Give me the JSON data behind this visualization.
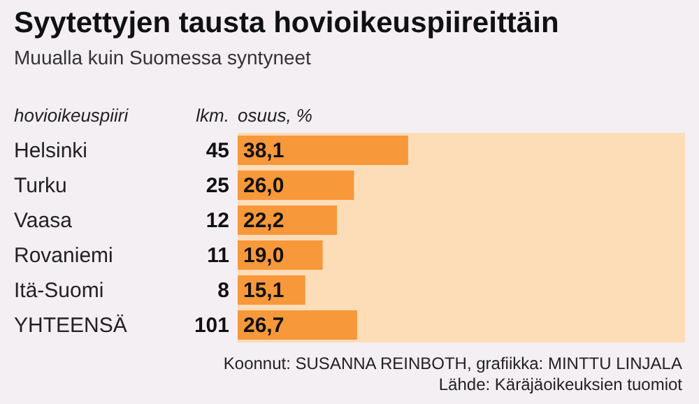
{
  "chart_data": {
    "type": "bar",
    "orientation": "horizontal",
    "title": "Syytettyjen tausta hovioikeuspiireittäin",
    "subtitle": "Muualla kuin Suomessa syntyneet",
    "xlabel": "osuus, %",
    "categories": [
      "Helsinki",
      "Turku",
      "Vaasa",
      "Rovaniemi",
      "Itä-Suomi",
      "YHTEENSÄ"
    ],
    "values": [
      38.1,
      26.0,
      22.2,
      19.0,
      15.1,
      26.7
    ],
    "value_labels": [
      "38,1",
      "26,0",
      "22,2",
      "19,0",
      "15,1",
      "26,7"
    ],
    "color": "#f7983a",
    "xlim": [
      0,
      100
    ],
    "bands": [
      {
        "axis": "x",
        "from": 0,
        "to": 100,
        "color": "#fddcb8"
      }
    ],
    "tick_labels": "y",
    "annotations": [
      "hovioikeuspiiri",
      "lkm.",
      "45",
      "25",
      "12",
      "11",
      "8",
      "101",
      "Koonnut: SUSANNA REINBOTH, grafiikka: MINTTU LINJALA",
      "Lähde: Käräjäoikeuksien tuomiot"
    ]
  }
}
